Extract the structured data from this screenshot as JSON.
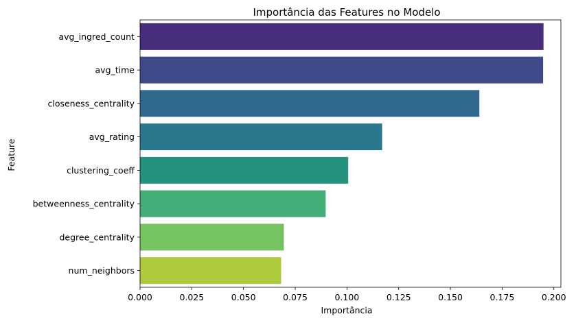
{
  "chart_data": {
    "type": "bar",
    "orientation": "horizontal",
    "title": "Importância das Features no Modelo",
    "xlabel": "Importância",
    "ylabel": "Feature",
    "categories": [
      "avg_ingred_count",
      "avg_time",
      "closeness_centrality",
      "avg_rating",
      "clustering_coeff",
      "betweenness_centrality",
      "degree_centrality",
      "num_neighbors"
    ],
    "values": [
      0.195,
      0.1948,
      0.164,
      0.117,
      0.1006,
      0.0897,
      0.0695,
      0.0682
    ],
    "colors": [
      "#472d7b",
      "#3e4a89",
      "#31688e",
      "#2a788e",
      "#25917f",
      "#44ad77",
      "#76c461",
      "#aecb3e"
    ],
    "xlim": [
      0,
      0.2034
    ],
    "xticks": [
      "0.000",
      "0.025",
      "0.050",
      "0.075",
      "0.100",
      "0.125",
      "0.150",
      "0.175",
      "0.200"
    ],
    "grid": false,
    "legend": "none"
  }
}
